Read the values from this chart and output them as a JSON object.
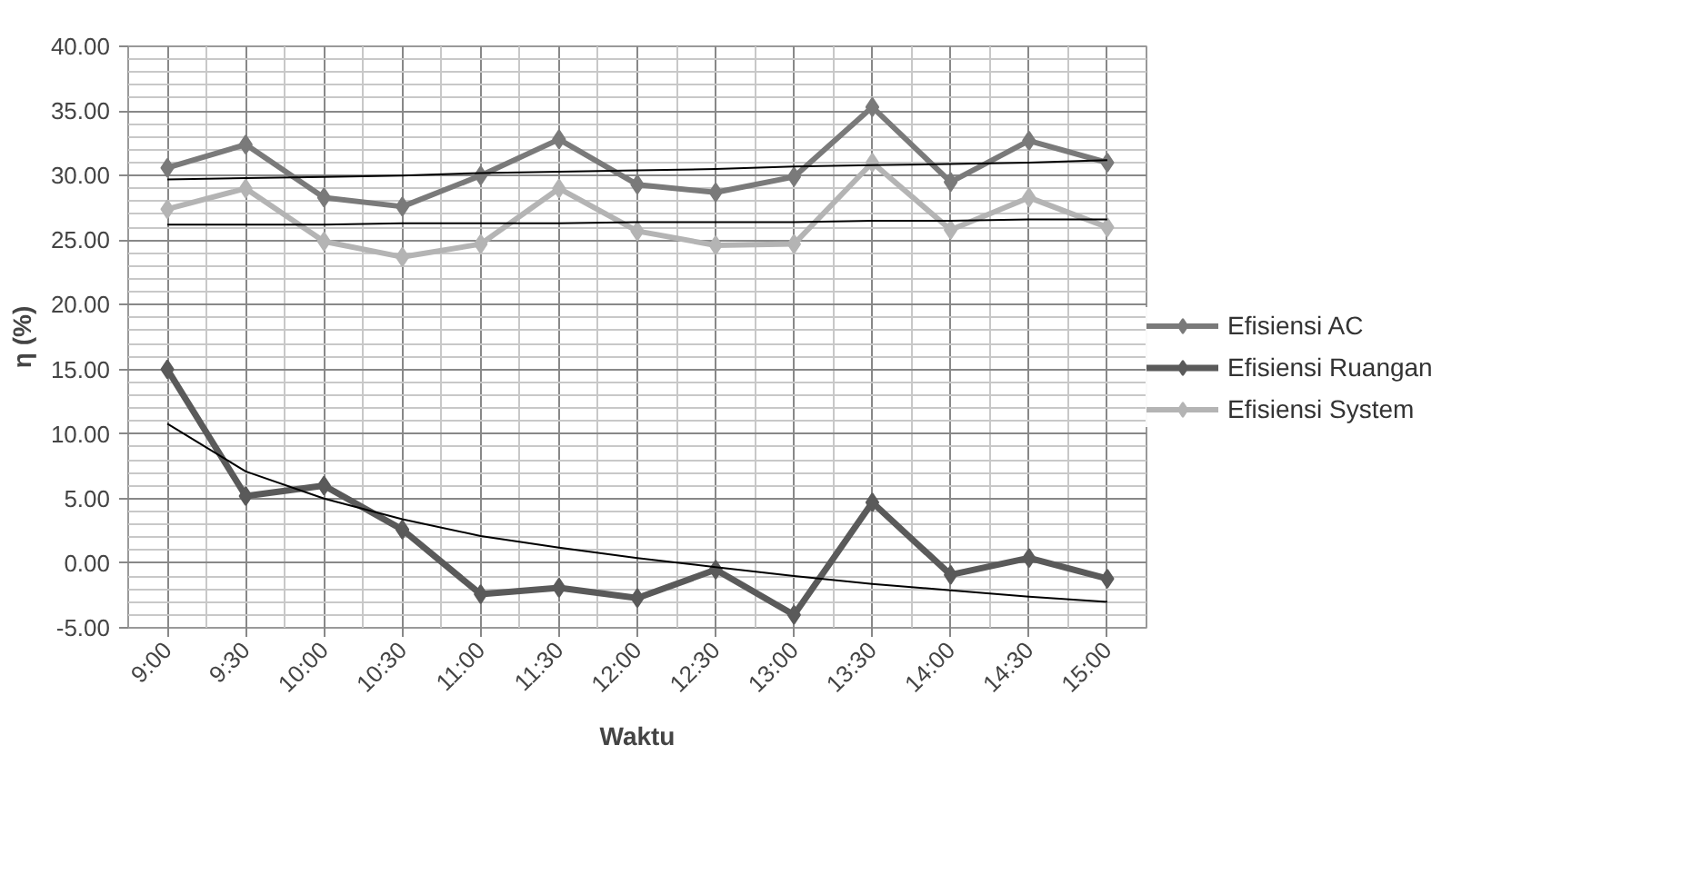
{
  "chart_data": {
    "type": "line",
    "xlabel": "Waktu",
    "ylabel": "η (%)",
    "categories": [
      "9:00",
      "9:30",
      "10:00",
      "10:30",
      "11:00",
      "11:30",
      "12:00",
      "12:30",
      "13:00",
      "13:30",
      "14:00",
      "14:30",
      "15:00"
    ],
    "series": [
      {
        "name": "Efisiensi AC",
        "color": "#7a7a7a",
        "values": [
          30.6,
          32.4,
          28.3,
          27.6,
          30.0,
          32.8,
          29.3,
          28.7,
          29.9,
          35.3,
          29.5,
          32.7,
          31.0
        ]
      },
      {
        "name": "Efisiensi Ruangan",
        "color": "#5a5a5a",
        "values": [
          15.0,
          5.2,
          6.0,
          2.6,
          -2.4,
          -1.9,
          -2.7,
          -0.5,
          -4.0,
          4.7,
          -0.9,
          0.4,
          -1.2
        ]
      },
      {
        "name": "Efisiensi System",
        "color": "#b4b4b4",
        "values": [
          27.4,
          29.0,
          24.9,
          23.7,
          24.7,
          29.0,
          25.7,
          24.6,
          24.7,
          31.0,
          25.8,
          28.3,
          26.0
        ]
      },
      {
        "type": "line",
        "marker": "none",
        "color": "#000000",
        "values": [
          29.7,
          29.8,
          29.9,
          30.0,
          30.2,
          30.3,
          30.4,
          30.5,
          30.7,
          30.8,
          30.9,
          31.0,
          31.2
        ]
      },
      {
        "type": "line",
        "marker": "none",
        "color": "#000000",
        "values": [
          10.8,
          7.1,
          5.0,
          3.4,
          2.1,
          1.2,
          0.4,
          -0.3,
          -1.0,
          -1.6,
          -2.1,
          -2.6,
          -3.0
        ]
      },
      {
        "type": "line",
        "marker": "none",
        "color": "#000000",
        "values": [
          26.2,
          26.2,
          26.2,
          26.3,
          26.3,
          26.3,
          26.4,
          26.4,
          26.4,
          26.5,
          26.5,
          26.6,
          26.6
        ]
      }
    ],
    "ylim": [
      -5,
      40
    ],
    "yticks": [
      {
        "value": -5,
        "label": "-5.00"
      },
      {
        "value": 0,
        "label": "0.00"
      },
      {
        "value": 5,
        "label": "5.00"
      },
      {
        "value": 10,
        "label": "10.00"
      },
      {
        "value": 15,
        "label": "15.00"
      },
      {
        "value": 20,
        "label": "20.00"
      },
      {
        "value": 25,
        "label": "25.00"
      },
      {
        "value": 30,
        "label": "30.00"
      },
      {
        "value": 35,
        "label": "35.00"
      },
      {
        "value": 40,
        "label": "40.00"
      }
    ],
    "grid": true,
    "legend": "right",
    "marker": "diamond",
    "line_style": "solid"
  }
}
